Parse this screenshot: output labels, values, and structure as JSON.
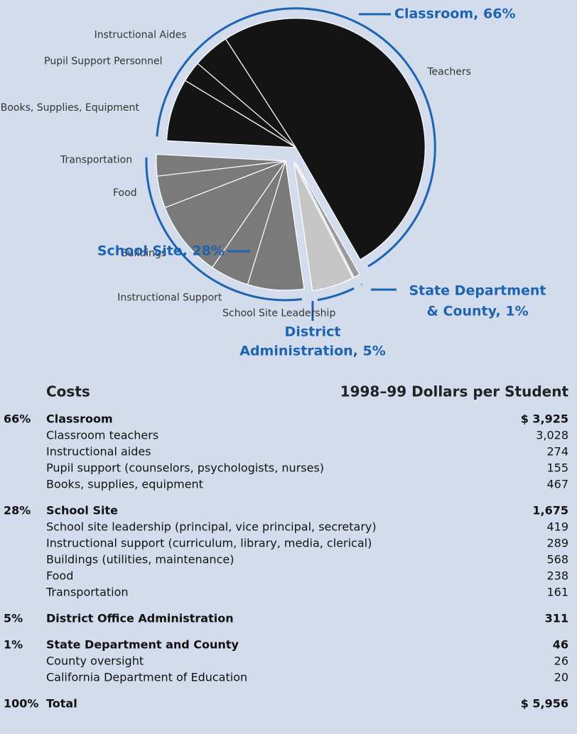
{
  "chart_data": {
    "type": "pie",
    "groups": [
      {
        "label": [
          "Classroom, 66%"
        ],
        "color": "#141414",
        "slices": [
          {
            "name": "Books, Supplies, Equipment",
            "value": 467
          },
          {
            "name": "Pupil Support Personnel",
            "value": 155
          },
          {
            "name": "Instructional Aides",
            "value": 274
          },
          {
            "name": "Teachers",
            "value": 3028
          }
        ]
      },
      {
        "label": [
          "State Department",
          "& County, 1%"
        ],
        "color": "#9a9a9a",
        "slices": [
          {
            "name": null,
            "value": 46
          }
        ]
      },
      {
        "label": [
          "District",
          "Administration, 5%"
        ],
        "color": "#c6c6c6",
        "slices": [
          {
            "name": null,
            "value": 311
          }
        ]
      },
      {
        "label": [
          "School Site, 28%"
        ],
        "color": "#7a7a7a",
        "slices": [
          {
            "name": "School Site Leadership",
            "value": 419
          },
          {
            "name": "Instructional Support",
            "value": 289
          },
          {
            "name": "Buildings",
            "value": 568
          },
          {
            "name": "Food",
            "value": 238
          },
          {
            "name": "Transportation",
            "value": 161
          }
        ]
      }
    ],
    "label_color": "#1d63b0"
  },
  "table": {
    "header": [
      "Costs",
      "1998–99 Dollars per Student"
    ],
    "sections": [
      {
        "percent": "66%",
        "name": "Classroom",
        "amount": "$ 3,925",
        "items": [
          [
            "Classroom teachers",
            "3,028"
          ],
          [
            "Instructional aides",
            "274"
          ],
          [
            "Pupil support (counselors, psychologists, nurses)",
            "155"
          ],
          [
            "Books, supplies, equipment",
            "467"
          ]
        ]
      },
      {
        "percent": "28%",
        "name": "School Site",
        "amount": "1,675",
        "items": [
          [
            "School site leadership (principal, vice principal, secretary)",
            "419"
          ],
          [
            "Instructional support (curriculum, library, media, clerical)",
            "289"
          ],
          [
            "Buildings (utilities, maintenance)",
            "568"
          ],
          [
            "Food",
            "238"
          ],
          [
            "Transportation",
            "161"
          ]
        ]
      },
      {
        "percent": "5%",
        "name": "District Office Administration",
        "amount": "311",
        "items": []
      },
      {
        "percent": "1%",
        "name": "State Department and County",
        "amount": "46",
        "items": [
          [
            "County oversight",
            "26"
          ],
          [
            "California Department of Education",
            "20"
          ]
        ]
      }
    ],
    "total": {
      "percent": "100%",
      "name": "Total",
      "amount": "$ 5,956"
    }
  }
}
